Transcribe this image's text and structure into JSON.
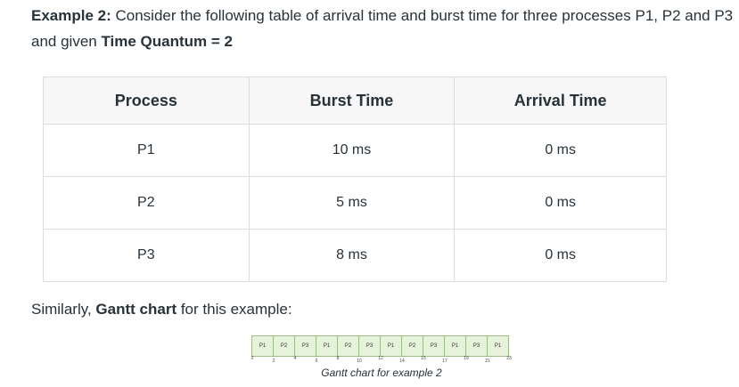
{
  "intro": {
    "example_label": "Example 2:",
    "text_part1": " Consider the following table of arrival time and burst time for three processes P1, P2 and P3 and given ",
    "quantum_label": "Time Quantum = 2"
  },
  "table": {
    "headers": [
      "Process",
      "Burst Time",
      "Arrival Time"
    ],
    "rows": [
      [
        "P1",
        "10 ms",
        "0 ms"
      ],
      [
        "P2",
        "5 ms",
        "0 ms"
      ],
      [
        "P3",
        "8 ms",
        "0 ms"
      ]
    ]
  },
  "similar": {
    "prefix": "Similarly, ",
    "bold": "Gantt chart",
    "suffix": " for this example:"
  },
  "gantt": {
    "slots": [
      {
        "label": "P1",
        "start": 0,
        "end": 2
      },
      {
        "label": "P2",
        "start": 2,
        "end": 4
      },
      {
        "label": "P3",
        "start": 4,
        "end": 6
      },
      {
        "label": "P1",
        "start": 6,
        "end": 8
      },
      {
        "label": "P2",
        "start": 8,
        "end": 10
      },
      {
        "label": "P3",
        "start": 10,
        "end": 12
      },
      {
        "label": "P1",
        "start": 12,
        "end": 14
      },
      {
        "label": "P2",
        "start": 14,
        "end": 15
      },
      {
        "label": "P3",
        "start": 15,
        "end": 17
      },
      {
        "label": "P1",
        "start": 17,
        "end": 19
      },
      {
        "label": "P3",
        "start": 19,
        "end": 21
      },
      {
        "label": "P1",
        "start": 21,
        "end": 23
      }
    ],
    "ticks": [
      "0",
      "2",
      "4",
      "6",
      "8",
      "10",
      "12",
      "14",
      "15",
      "17",
      "19",
      "21",
      "23"
    ],
    "caption": "Gantt chart for example 2"
  }
}
